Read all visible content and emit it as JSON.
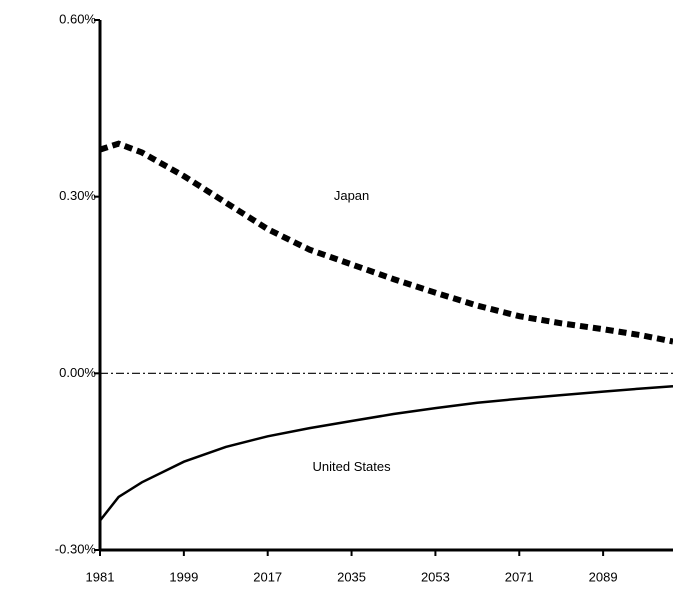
{
  "chart_data": {
    "type": "line",
    "x": [
      1981,
      1985,
      1990,
      1999,
      2008,
      2017,
      2026,
      2035,
      2044,
      2053,
      2062,
      2071,
      2080,
      2089,
      2097,
      2104
    ],
    "series": [
      {
        "name": "Japan",
        "color": "#000000",
        "line_style": "dashed",
        "values": [
          0.38,
          0.39,
          0.375,
          0.335,
          0.29,
          0.245,
          0.21,
          0.185,
          0.16,
          0.137,
          0.115,
          0.097,
          0.085,
          0.075,
          0.065,
          0.054
        ]
      },
      {
        "name": "United States",
        "color": "#000000",
        "line_style": "solid",
        "values": [
          -0.25,
          -0.21,
          -0.185,
          -0.15,
          -0.125,
          -0.107,
          -0.093,
          -0.081,
          -0.069,
          -0.059,
          -0.05,
          -0.043,
          -0.037,
          -0.031,
          -0.026,
          -0.022
        ]
      }
    ],
    "xlim": [
      1981,
      2104
    ],
    "xticks": [
      1981,
      1999,
      2017,
      2035,
      2053,
      2071,
      2089
    ],
    "ylim": [
      -0.3,
      0.6
    ],
    "yticks": [
      {
        "value": -0.3,
        "label": "-0.30%"
      },
      {
        "value": 0,
        "label": "0.00%"
      },
      {
        "value": 0.3,
        "label": "0.30%"
      },
      {
        "value": 0.6,
        "label": "0.60%"
      }
    ],
    "zero_line": true
  }
}
